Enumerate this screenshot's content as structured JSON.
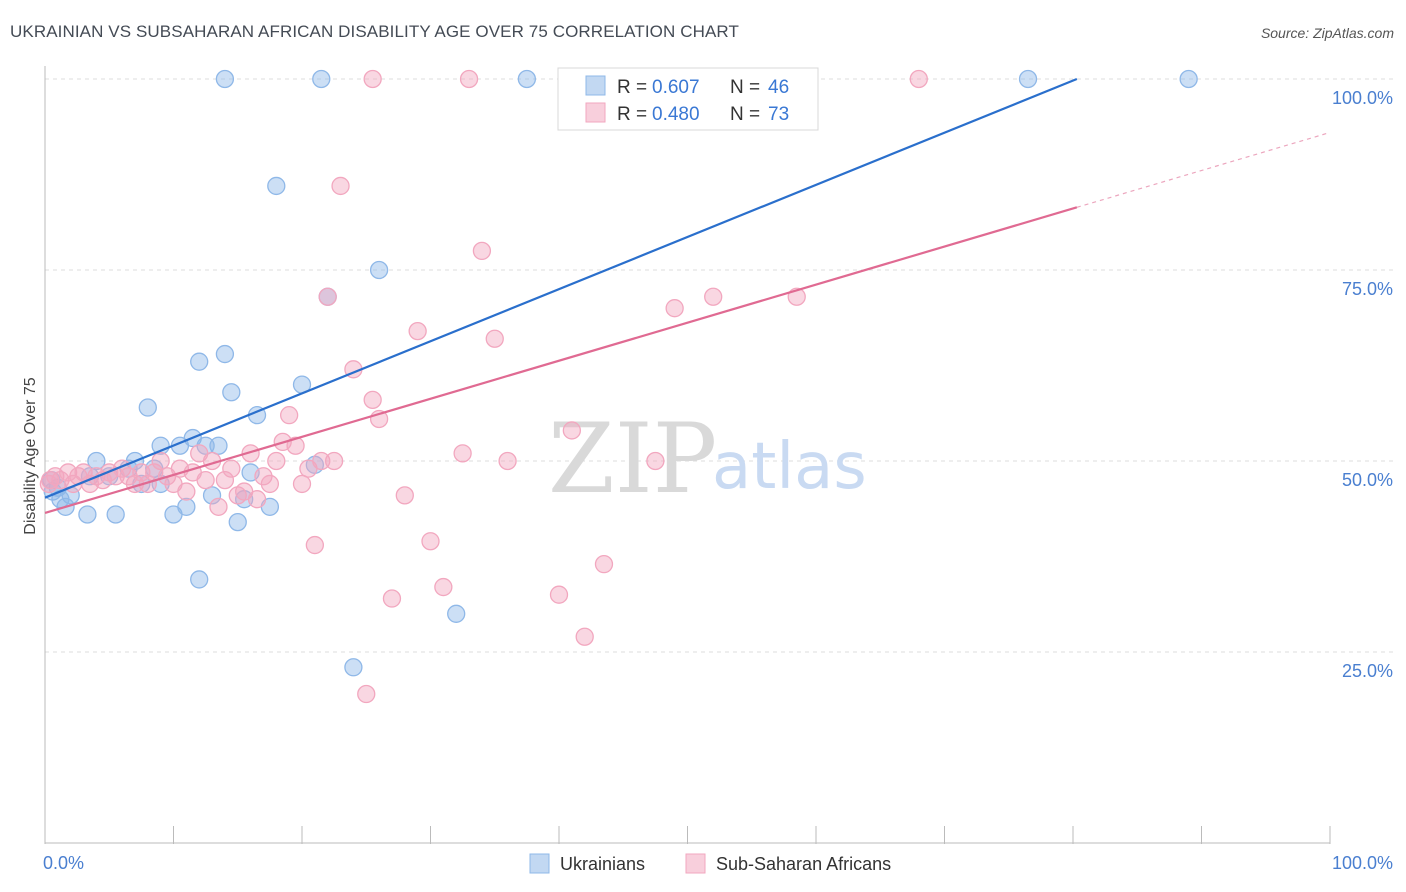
{
  "title": "UKRAINIAN VS SUBSAHARAN AFRICAN DISABILITY AGE OVER 75 CORRELATION CHART",
  "source": "Source: ZipAtlas.com",
  "watermark": {
    "zip": "ZIP",
    "atlas": "atlas"
  },
  "chart_data": {
    "type": "scatter",
    "ylabel": "Disability Age Over 75",
    "xlim": [
      0,
      100
    ],
    "ylim": [
      0,
      100
    ],
    "x_tick_labels": [
      "0.0%",
      "100.0%"
    ],
    "y_ticks": [
      25,
      50,
      75,
      100
    ],
    "y_tick_labels": [
      "25.0%",
      "50.0%",
      "75.0%",
      "100.0%"
    ],
    "grid": true,
    "legend": [
      {
        "r_label": "R =",
        "r_value": "0.607",
        "n_label": "N =",
        "n_value": "46"
      },
      {
        "r_label": "R =",
        "r_value": "0.480",
        "n_label": "N =",
        "n_value": "73"
      }
    ],
    "series": [
      {
        "name": "Ukrainians",
        "color": "#8fb8e8",
        "line_color": "#2a6fcc",
        "trend": {
          "x0": 0,
          "y0": 45.2,
          "x1": 80.3,
          "y1": 100,
          "dash_to": null
        },
        "points": [
          [
            0.5,
            47.5
          ],
          [
            0.6,
            46.0
          ],
          [
            1.2,
            45.0
          ],
          [
            1.6,
            44.0
          ],
          [
            2.0,
            45.5
          ],
          [
            3.5,
            48.0
          ],
          [
            3.3,
            43.0
          ],
          [
            4.0,
            50.0
          ],
          [
            5.0,
            48.0
          ],
          [
            5.5,
            43.0
          ],
          [
            6.5,
            49.0
          ],
          [
            7.0,
            50.0
          ],
          [
            7.5,
            47.0
          ],
          [
            8.0,
            57.0
          ],
          [
            8.5,
            49.0
          ],
          [
            9.0,
            52.0
          ],
          [
            9.0,
            47.0
          ],
          [
            10.0,
            43.0
          ],
          [
            10.5,
            52.0
          ],
          [
            11.0,
            44.0
          ],
          [
            11.5,
            53.0
          ],
          [
            12.0,
            63.0
          ],
          [
            12.0,
            34.5
          ],
          [
            12.5,
            52.0
          ],
          [
            13.0,
            45.5
          ],
          [
            13.5,
            52.0
          ],
          [
            14.0,
            64.0
          ],
          [
            14.5,
            59.0
          ],
          [
            15.0,
            42.0
          ],
          [
            15.5,
            45.0
          ],
          [
            16.0,
            48.5
          ],
          [
            16.5,
            56.0
          ],
          [
            17.5,
            44.0
          ],
          [
            18.0,
            86.0
          ],
          [
            20.0,
            60.0
          ],
          [
            21.0,
            49.5
          ],
          [
            22.0,
            71.5
          ],
          [
            24.0,
            23.0
          ],
          [
            26.0,
            75.0
          ],
          [
            32.0,
            30.0
          ],
          [
            14.0,
            100
          ],
          [
            21.5,
            100
          ],
          [
            37.5,
            100
          ],
          [
            76.5,
            100
          ],
          [
            89.0,
            100
          ],
          [
            1.0,
            46.5
          ]
        ]
      },
      {
        "name": "Sub-Saharan Africans",
        "color": "#f2a7bf",
        "line_color": "#e06a92",
        "trend": {
          "x0": 0,
          "y0": 43.2,
          "x1": 80.3,
          "y1": 83.2,
          "dash_to": {
            "x": 100,
            "y": 93.0
          }
        },
        "points": [
          [
            0.3,
            47.0
          ],
          [
            0.8,
            48.0
          ],
          [
            1.2,
            47.5
          ],
          [
            1.8,
            48.5
          ],
          [
            2.2,
            47.0
          ],
          [
            2.6,
            48.0
          ],
          [
            3.0,
            48.5
          ],
          [
            3.5,
            47.0
          ],
          [
            4.0,
            48.0
          ],
          [
            4.5,
            47.5
          ],
          [
            5.0,
            48.5
          ],
          [
            5.5,
            48.0
          ],
          [
            6.0,
            49.0
          ],
          [
            6.5,
            48.0
          ],
          [
            7.0,
            47.0
          ],
          [
            7.5,
            48.5
          ],
          [
            8.0,
            47.0
          ],
          [
            8.5,
            48.5
          ],
          [
            9.0,
            50.0
          ],
          [
            9.5,
            48.0
          ],
          [
            10.0,
            47.0
          ],
          [
            10.5,
            49.0
          ],
          [
            11.0,
            46.0
          ],
          [
            11.5,
            48.5
          ],
          [
            12.0,
            51.0
          ],
          [
            12.5,
            47.5
          ],
          [
            13.0,
            50.0
          ],
          [
            13.5,
            44.0
          ],
          [
            14.0,
            47.5
          ],
          [
            14.5,
            49.0
          ],
          [
            15.0,
            45.5
          ],
          [
            15.5,
            46.0
          ],
          [
            16.0,
            51.0
          ],
          [
            16.5,
            45.0
          ],
          [
            17.0,
            48.0
          ],
          [
            17.5,
            47.0
          ],
          [
            18.0,
            50.0
          ],
          [
            18.5,
            52.5
          ],
          [
            19.0,
            56.0
          ],
          [
            19.5,
            52.0
          ],
          [
            20.0,
            47.0
          ],
          [
            20.5,
            49.0
          ],
          [
            21.0,
            39.0
          ],
          [
            21.5,
            50.0
          ],
          [
            22.0,
            71.5
          ],
          [
            22.5,
            50.0
          ],
          [
            23.0,
            86.0
          ],
          [
            24.0,
            62.0
          ],
          [
            25.0,
            19.5
          ],
          [
            25.5,
            58.0
          ],
          [
            26.0,
            55.5
          ],
          [
            27.0,
            32.0
          ],
          [
            28.0,
            45.5
          ],
          [
            29.0,
            67.0
          ],
          [
            30.0,
            39.5
          ],
          [
            31.0,
            33.5
          ],
          [
            32.5,
            51.0
          ],
          [
            34.0,
            77.5
          ],
          [
            35.0,
            66.0
          ],
          [
            36.0,
            50.0
          ],
          [
            40.0,
            32.5
          ],
          [
            41.0,
            54.0
          ],
          [
            42.0,
            27.0
          ],
          [
            43.5,
            36.5
          ],
          [
            47.5,
            50.0
          ],
          [
            49.0,
            70.0
          ],
          [
            52.0,
            71.5
          ],
          [
            58.5,
            71.5
          ],
          [
            25.5,
            100
          ],
          [
            33.0,
            100
          ],
          [
            59.0,
            100
          ],
          [
            68.0,
            100
          ],
          [
            0.4,
            47.5
          ]
        ]
      }
    ]
  }
}
